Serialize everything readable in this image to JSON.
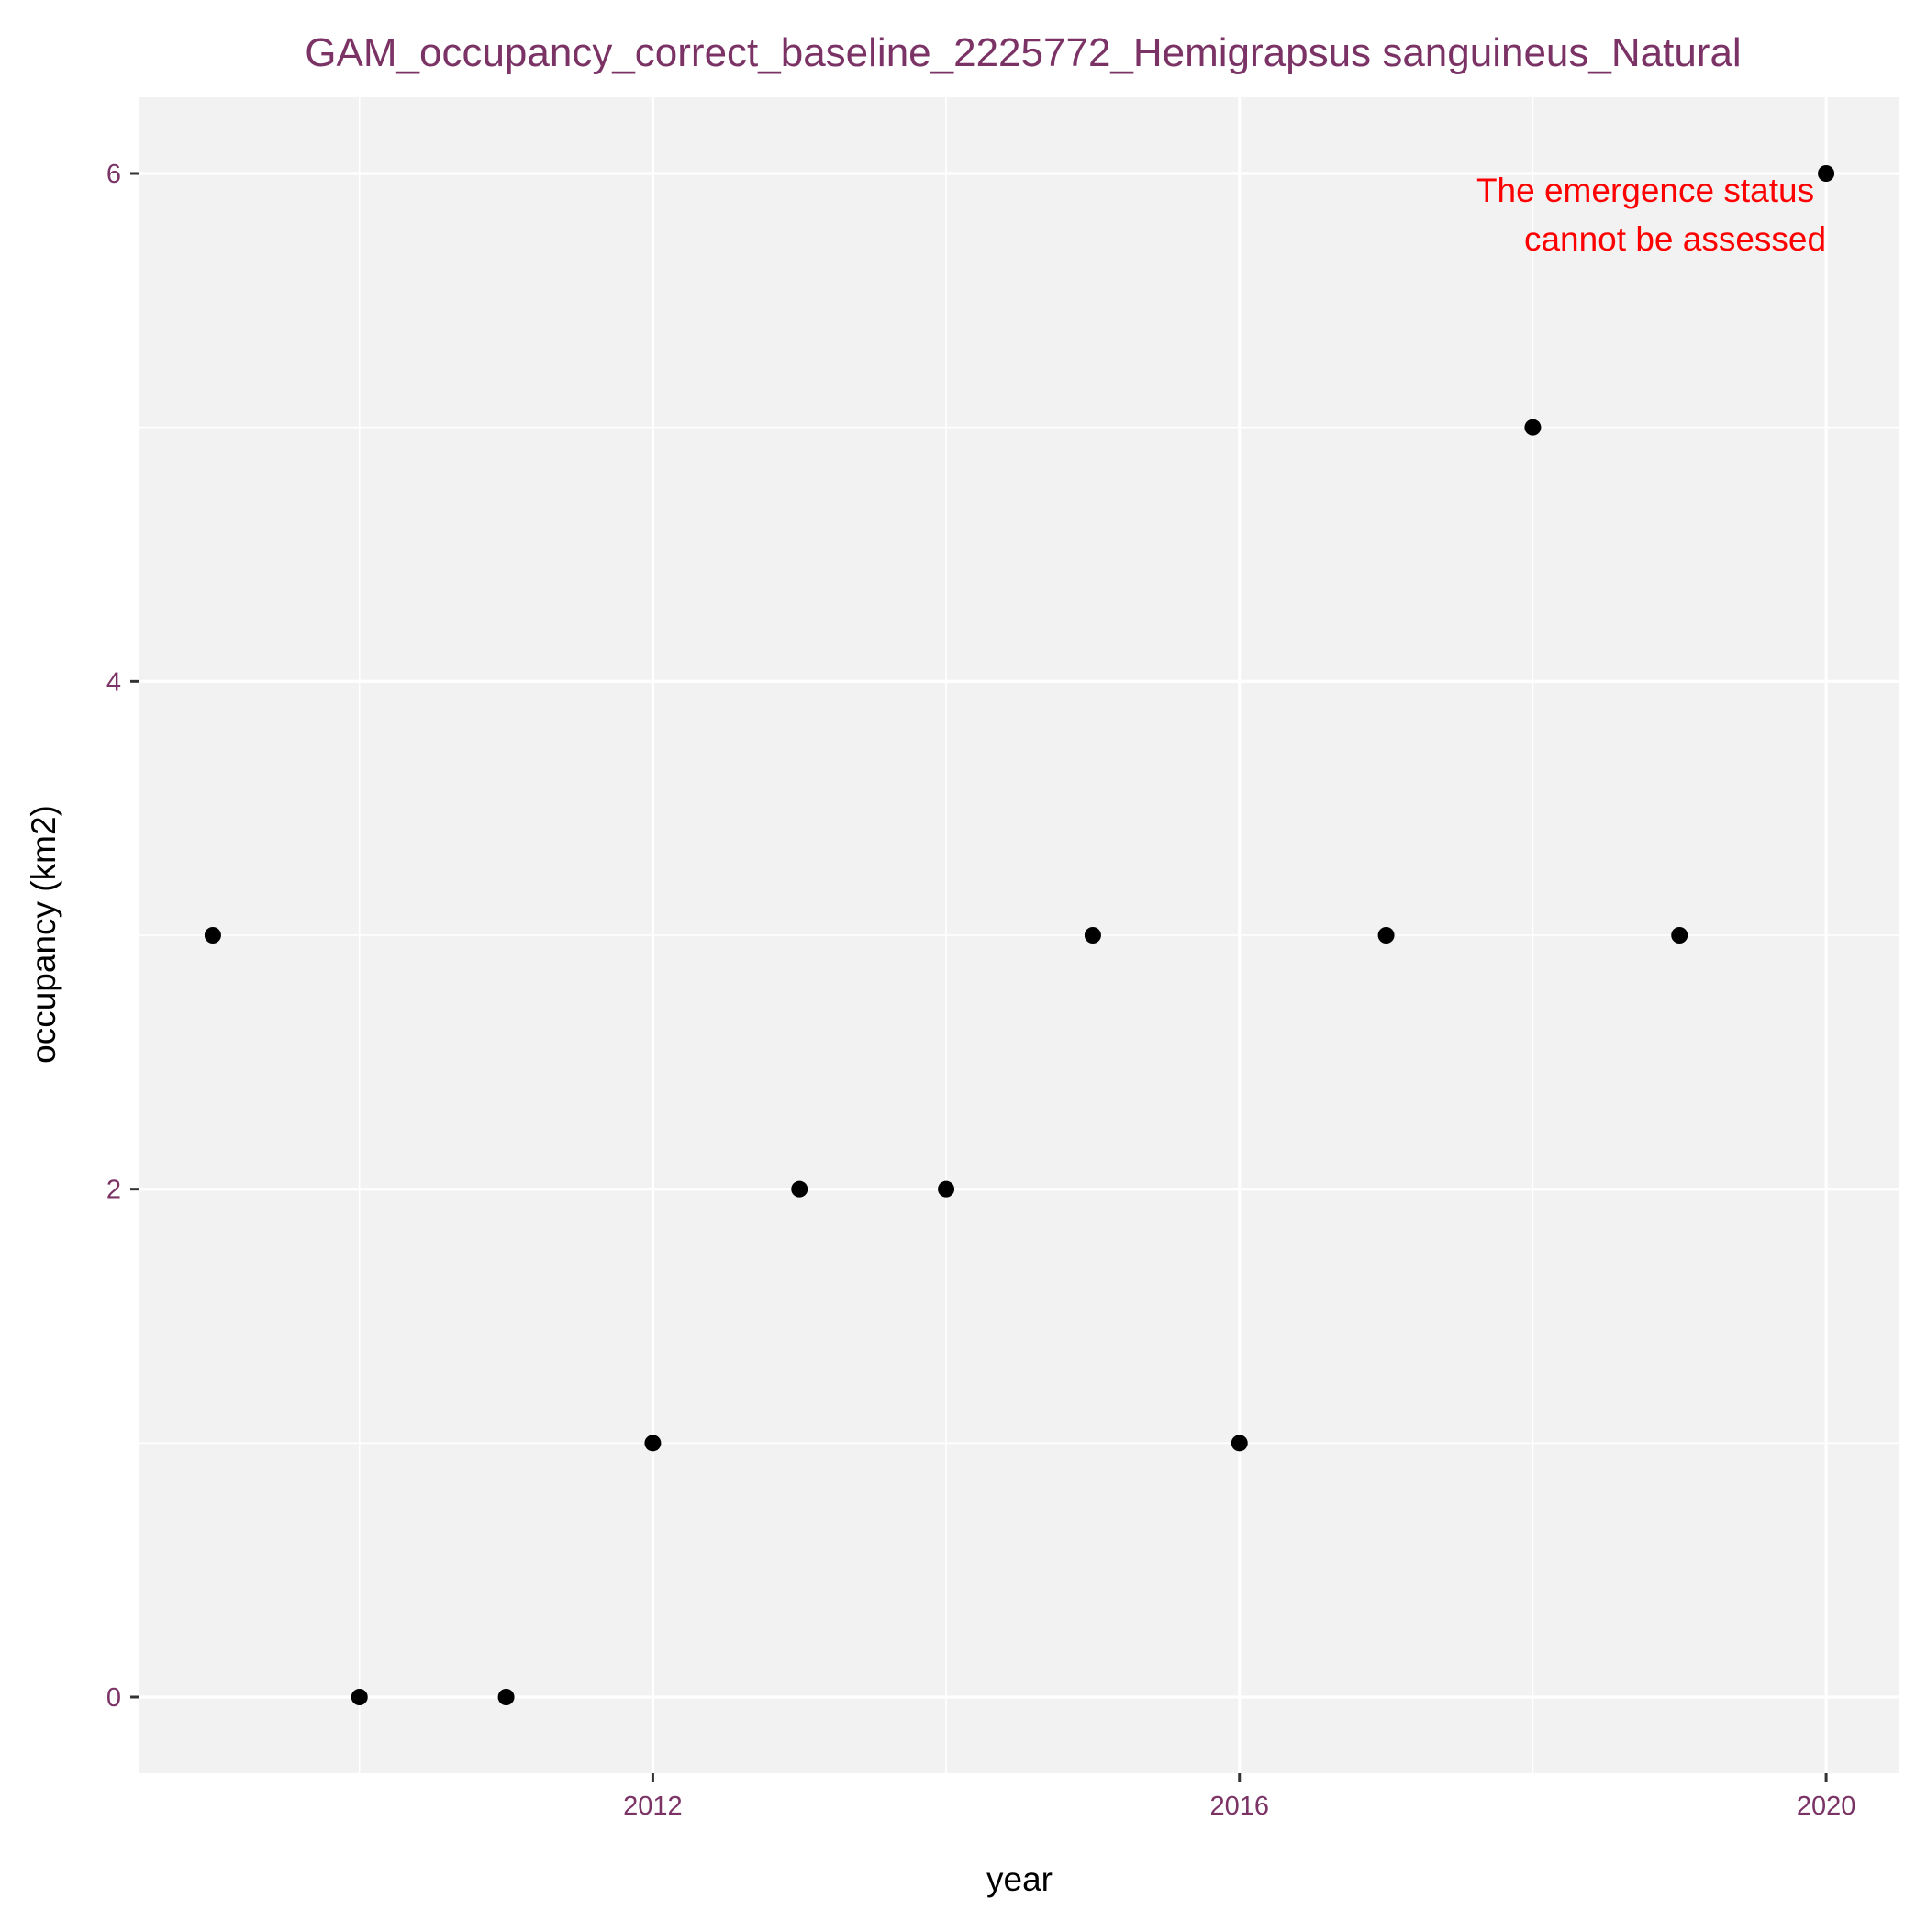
{
  "chart_data": {
    "type": "scatter",
    "title": "GAM_occupancy_correct_baseline_2225772_Hemigrapsus sanguineus_Natural",
    "xlabel": "year",
    "ylabel": "occupancy (km2)",
    "xlim": [
      2008.5,
      2020.5
    ],
    "ylim": [
      -0.3,
      6.3
    ],
    "x_ticks": [
      2012,
      2016,
      2020
    ],
    "x_tick_labels": [
      "2012",
      "2016",
      "2020"
    ],
    "y_ticks": [
      0,
      2,
      4,
      6
    ],
    "y_tick_labels": [
      "0",
      "2",
      "4",
      "6"
    ],
    "y_minor_gridlines": [
      1,
      3,
      5
    ],
    "x_minor_gridlines": [
      2010,
      2014,
      2018
    ],
    "grid": true,
    "legend": "none",
    "points": [
      {
        "x": 2009,
        "y": 3
      },
      {
        "x": 2010,
        "y": 0
      },
      {
        "x": 2011,
        "y": 0
      },
      {
        "x": 2012,
        "y": 1
      },
      {
        "x": 2013,
        "y": 2
      },
      {
        "x": 2014,
        "y": 2
      },
      {
        "x": 2015,
        "y": 3
      },
      {
        "x": 2016,
        "y": 1
      },
      {
        "x": 2017,
        "y": 3
      },
      {
        "x": 2018,
        "y": 5
      },
      {
        "x": 2019,
        "y": 3
      },
      {
        "x": 2020,
        "y": 6
      }
    ],
    "annotation": {
      "lines": [
        "The emergence status",
        "cannot be assessed"
      ],
      "anchor_x": 2020,
      "anchor_y": 6
    },
    "colors": {
      "panel_background": "#f2f2f2",
      "gridline": "#ffffff",
      "point": "#000000",
      "title": "#7b3366",
      "tick_label": "#7b3366",
      "annotation": "#ff0000"
    }
  }
}
